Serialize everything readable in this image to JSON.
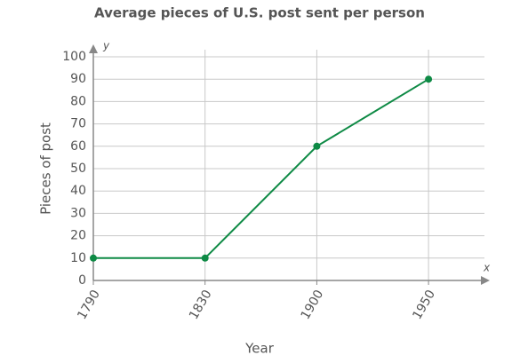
{
  "chart_data": {
    "type": "line",
    "title": "Average pieces of U.S. post sent per person",
    "x_label": "Year",
    "y_label": "Pieces of post",
    "x_axis_name": "x",
    "y_axis_name": "y",
    "categories": [
      "1790",
      "1830",
      "1900",
      "1950"
    ],
    "values": [
      10,
      10,
      60,
      90
    ],
    "color": "#0e8a45",
    "ylim": [
      0,
      100
    ],
    "yticks": [
      0,
      10,
      20,
      30,
      40,
      50,
      60,
      70,
      80,
      90,
      100
    ],
    "grid": true
  }
}
